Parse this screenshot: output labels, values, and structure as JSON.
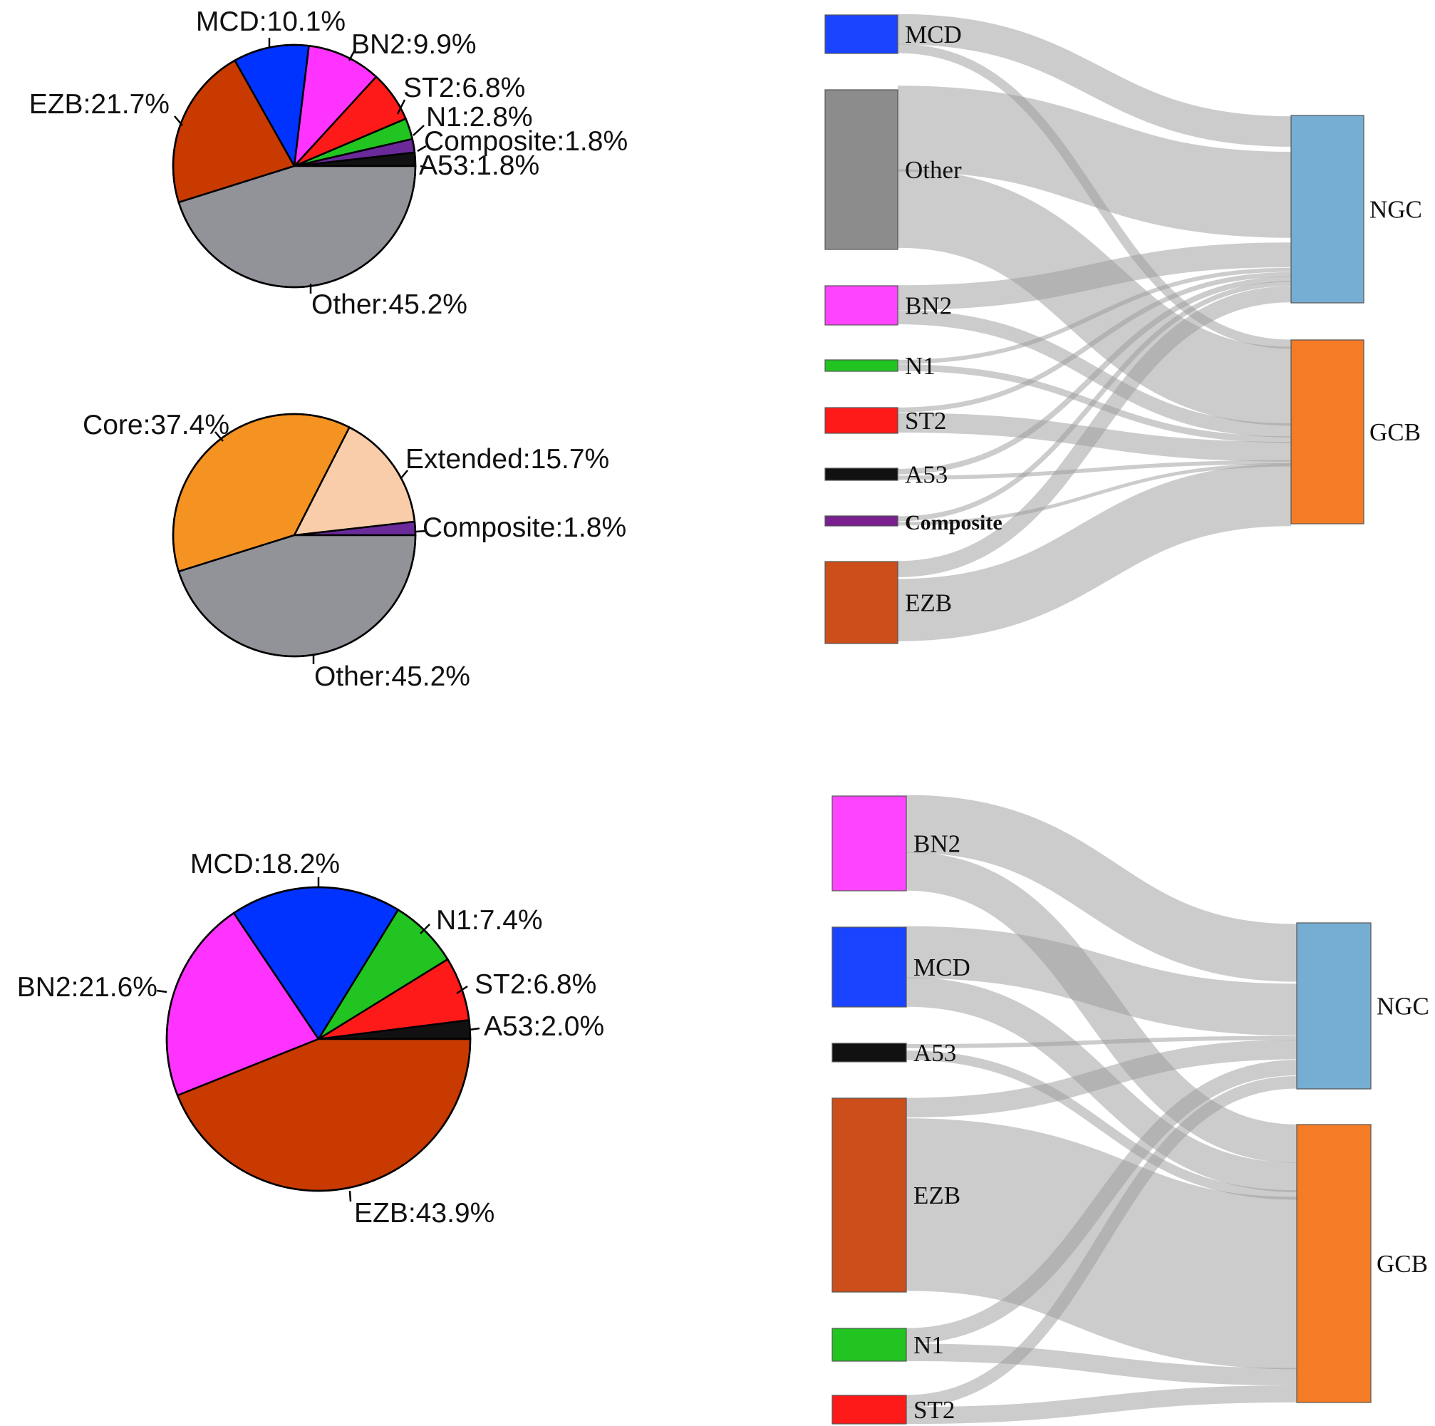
{
  "colors": {
    "MCD": "#1a44ff",
    "MCD_pie": "#0033ff",
    "BN2": "#ff44ff",
    "BN2_pie": "#ff33ff",
    "ST2": "#ff1a1a",
    "N1": "#22c422",
    "Composite": "#7a1f8f",
    "Composite_pie": "#6a2a9a",
    "A53": "#111111",
    "EZB": "#cc4e1a",
    "EZB_pie": "#c83a00",
    "Other": "#8c8c8c",
    "Other_pie": "#929299",
    "Core": "#f59322",
    "Extended": "#f9cdaa",
    "NGC": "#76aed3",
    "GCB": "#f47c27",
    "link": "#9a9a9a"
  },
  "chart_data": [
    {
      "type": "pie",
      "title": "",
      "slices": [
        {
          "label": "A53",
          "value": 1.8,
          "text": "A53:1.8%",
          "color": "#111111"
        },
        {
          "label": "Composite",
          "value": 1.8,
          "text": "Composite:1.8%",
          "color": "#6a2a9a"
        },
        {
          "label": "N1",
          "value": 2.8,
          "text": "N1:2.8%",
          "color": "#22c422"
        },
        {
          "label": "ST2",
          "value": 6.8,
          "text": "ST2:6.8%",
          "color": "#ff1a1a"
        },
        {
          "label": "BN2",
          "value": 9.9,
          "text": "BN2:9.9%",
          "color": "#ff33ff"
        },
        {
          "label": "MCD",
          "value": 10.1,
          "text": "MCD:10.1%",
          "color": "#0033ff"
        },
        {
          "label": "EZB",
          "value": 21.7,
          "text": "EZB:21.7%",
          "color": "#c83a00"
        },
        {
          "label": "Other",
          "value": 45.2,
          "text": "Other:45.2%",
          "color": "#929299"
        }
      ]
    },
    {
      "type": "pie",
      "title": "",
      "slices": [
        {
          "label": "Composite",
          "value": 1.8,
          "text": "Composite:1.8%",
          "color": "#6a2a9a"
        },
        {
          "label": "Extended",
          "value": 15.7,
          "text": "Extended:15.7%",
          "color": "#f9cdaa"
        },
        {
          "label": "Core",
          "value": 37.4,
          "text": "Core:37.4%",
          "color": "#f59322"
        },
        {
          "label": "Other",
          "value": 45.2,
          "text": "Other:45.2%",
          "color": "#929299"
        }
      ]
    },
    {
      "type": "pie",
      "title": "",
      "slices": [
        {
          "label": "A53",
          "value": 2.0,
          "text": "A53:2.0%",
          "color": "#111111"
        },
        {
          "label": "ST2",
          "value": 6.8,
          "text": "ST2:6.8%",
          "color": "#ff1a1a"
        },
        {
          "label": "N1",
          "value": 7.4,
          "text": "N1:7.4%",
          "color": "#22c422"
        },
        {
          "label": "MCD",
          "value": 18.2,
          "text": "MCD:18.2%",
          "color": "#0033ff"
        },
        {
          "label": "BN2",
          "value": 21.6,
          "text": "BN2:21.6%",
          "color": "#ff33ff"
        },
        {
          "label": "EZB",
          "value": 43.9,
          "text": "EZB:43.9%",
          "color": "#c83a00"
        }
      ]
    },
    {
      "type": "sankey",
      "title": "",
      "sources": [
        {
          "name": "MCD",
          "label": "MCD"
        },
        {
          "name": "Other",
          "label": "Other"
        },
        {
          "name": "BN2",
          "label": "BN2"
        },
        {
          "name": "N1",
          "label": "N1"
        },
        {
          "name": "ST2",
          "label": "ST2"
        },
        {
          "name": "A53",
          "label": "A53"
        },
        {
          "name": "Composite",
          "label": "Composite"
        },
        {
          "name": "EZB",
          "label": "EZB"
        }
      ],
      "targets": [
        {
          "name": "NGC",
          "label": "NGC"
        },
        {
          "name": "GCB",
          "label": "GCB"
        }
      ],
      "links": [
        {
          "source": "MCD",
          "target": "NGC",
          "value": 7.5
        },
        {
          "source": "MCD",
          "target": "GCB",
          "value": 2.6
        },
        {
          "source": "Other",
          "target": "NGC",
          "value": 22.0
        },
        {
          "source": "Other",
          "target": "GCB",
          "value": 23.2
        },
        {
          "source": "BN2",
          "target": "NGC",
          "value": 6.0
        },
        {
          "source": "BN2",
          "target": "GCB",
          "value": 3.9
        },
        {
          "source": "N1",
          "target": "NGC",
          "value": 1.0
        },
        {
          "source": "N1",
          "target": "GCB",
          "value": 1.8
        },
        {
          "source": "ST2",
          "target": "NGC",
          "value": 1.2
        },
        {
          "source": "ST2",
          "target": "GCB",
          "value": 5.6
        },
        {
          "source": "A53",
          "target": "NGC",
          "value": 1.0
        },
        {
          "source": "A53",
          "target": "GCB",
          "value": 0.8
        },
        {
          "source": "Composite",
          "target": "NGC",
          "value": 1.0
        },
        {
          "source": "Composite",
          "target": "GCB",
          "value": 0.8
        },
        {
          "source": "EZB",
          "target": "NGC",
          "value": 4.0
        },
        {
          "source": "EZB",
          "target": "GCB",
          "value": 17.7
        }
      ]
    },
    {
      "type": "sankey",
      "title": "",
      "sources": [
        {
          "name": "BN2",
          "label": "BN2"
        },
        {
          "name": "MCD",
          "label": "MCD"
        },
        {
          "name": "A53",
          "label": "A53"
        },
        {
          "name": "EZB",
          "label": "EZB"
        },
        {
          "name": "N1",
          "label": "N1"
        },
        {
          "name": "ST2",
          "label": "ST2"
        }
      ],
      "targets": [
        {
          "name": "NGC",
          "label": "NGC"
        },
        {
          "name": "GCB",
          "label": "GCB"
        }
      ],
      "links": [
        {
          "source": "BN2",
          "target": "NGC",
          "value": 12.7
        },
        {
          "source": "BN2",
          "target": "GCB",
          "value": 8.9
        },
        {
          "source": "MCD",
          "target": "NGC",
          "value": 11.4
        },
        {
          "source": "MCD",
          "target": "GCB",
          "value": 6.8
        },
        {
          "source": "A53",
          "target": "NGC",
          "value": 0.6
        },
        {
          "source": "A53",
          "target": "GCB",
          "value": 1.4
        },
        {
          "source": "EZB",
          "target": "NGC",
          "value": 4.3
        },
        {
          "source": "EZB",
          "target": "GCB",
          "value": 39.6
        },
        {
          "source": "N1",
          "target": "NGC",
          "value": 3.4
        },
        {
          "source": "N1",
          "target": "GCB",
          "value": 4.0
        },
        {
          "source": "ST2",
          "target": "NGC",
          "value": 2.8
        },
        {
          "source": "ST2",
          "target": "GCB",
          "value": 4.0
        }
      ]
    }
  ]
}
